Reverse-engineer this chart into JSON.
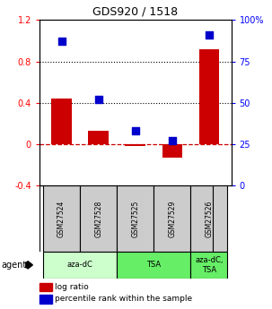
{
  "title": "GDS920 / 1518",
  "samples": [
    "GSM27524",
    "GSM27528",
    "GSM27525",
    "GSM27529",
    "GSM27526"
  ],
  "log_ratio": [
    0.44,
    0.13,
    -0.02,
    -0.13,
    0.92
  ],
  "percentile_rank": [
    87,
    52,
    33,
    27,
    91
  ],
  "ylim_left": [
    -0.4,
    1.2
  ],
  "ylim_right": [
    0,
    100
  ],
  "yticks_left": [
    -0.4,
    0.0,
    0.4,
    0.8,
    1.2
  ],
  "yticks_right": [
    0,
    25,
    50,
    75,
    100
  ],
  "ytick_labels_left": [
    "-0.4",
    "0",
    "0.4",
    "0.8",
    "1.2"
  ],
  "ytick_labels_right": [
    "0",
    "25",
    "50",
    "75",
    "100%"
  ],
  "hlines": [
    0.4,
    0.8
  ],
  "zero_line": 0.0,
  "agent_groups": [
    {
      "label": "aza-dC",
      "start": 0,
      "end": 2,
      "color": "#ccffcc"
    },
    {
      "label": "TSA",
      "start": 2,
      "end": 4,
      "color": "#66ee66"
    },
    {
      "label": "aza-dC,\nTSA",
      "start": 4,
      "end": 5,
      "color": "#66ee66"
    }
  ],
  "bar_color": "#cc0000",
  "dot_color": "#0000cc",
  "bar_width": 0.55,
  "dot_size": 40,
  "sample_box_color": "#cccccc",
  "legend_red_label": "log ratio",
  "legend_blue_label": "percentile rank within the sample",
  "agent_label": "agent"
}
